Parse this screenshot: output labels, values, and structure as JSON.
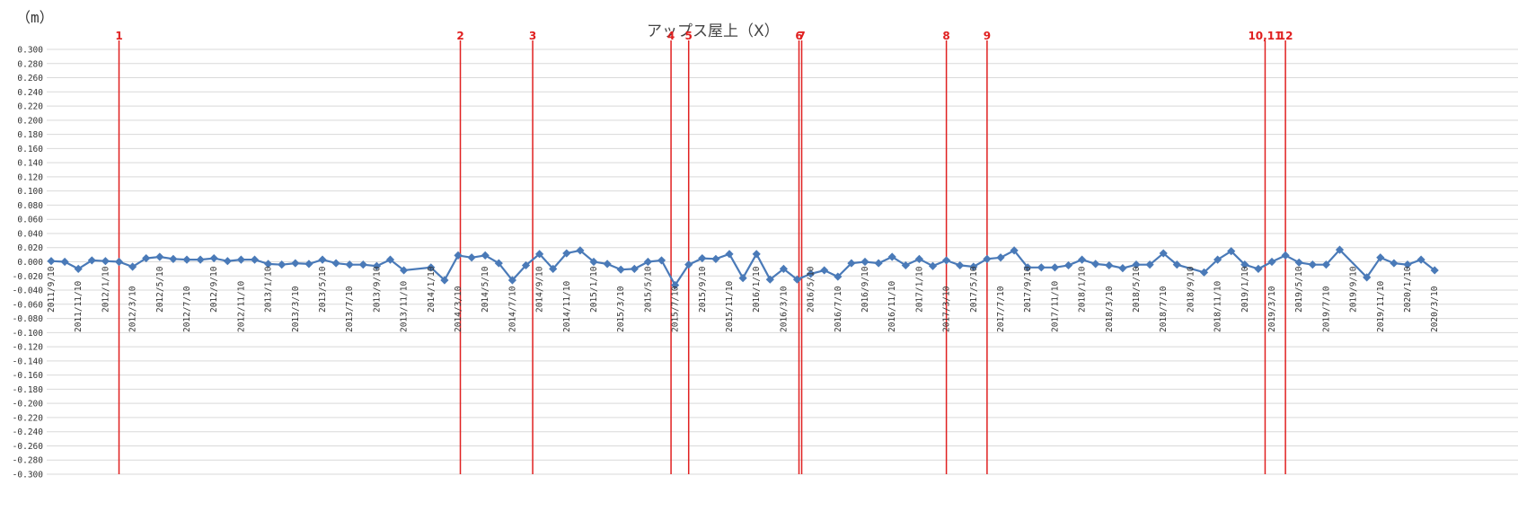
{
  "chart_data": {
    "type": "line",
    "title": "アップス屋上（X）",
    "unit_label": "（m）",
    "ylim": [
      -0.3,
      0.3
    ],
    "y_step": 0.02,
    "grid": true,
    "legend": "none",
    "x_tick_labels": [
      "2011/9/10",
      "2011/11/10",
      "2012/1/10",
      "2012/3/10",
      "2012/5/10",
      "2012/7/10",
      "2012/9/10",
      "2012/11/10",
      "2013/1/10",
      "2013/3/10",
      "2013/5/10",
      "2013/7/10",
      "2013/9/10",
      "2013/11/10",
      "2014/1/10",
      "2014/3/10",
      "2014/5/10",
      "2014/7/10",
      "2014/9/10",
      "2014/11/10",
      "2015/1/10",
      "2015/3/10",
      "2015/5/10",
      "2015/7/10",
      "2015/9/10",
      "2015/11/10",
      "2016/1/10",
      "2016/3/10",
      "2016/5/10",
      "2016/7/10",
      "2016/9/10",
      "2016/11/10",
      "2017/1/10",
      "2017/3/10",
      "2017/5/10",
      "2017/7/10",
      "2017/9/10",
      "2017/11/10",
      "2018/1/10",
      "2018/3/10",
      "2018/5/10",
      "2018/7/10",
      "2018/9/10",
      "2018/11/10",
      "2019/1/10",
      "2019/3/10",
      "2019/5/10",
      "2019/7/10",
      "2019/9/10",
      "2019/11/10",
      "2020/1/10",
      "2020/3/10"
    ],
    "series": [
      {
        "color": "#4a7ab8",
        "points": [
          [
            "2011/9/10",
            0.001
          ],
          [
            "2011/10/10",
            0.0
          ],
          [
            "2011/11/10",
            -0.01
          ],
          [
            "2011/12/10",
            0.002
          ],
          [
            "2012/1/10",
            0.001
          ],
          [
            "2012/2/10",
            0.0
          ],
          [
            "2012/3/10",
            -0.007
          ],
          [
            "2012/4/10",
            0.005
          ],
          [
            "2012/5/10",
            0.007
          ],
          [
            "2012/6/10",
            0.004
          ],
          [
            "2012/7/10",
            0.003
          ],
          [
            "2012/8/10",
            0.003
          ],
          [
            "2012/9/10",
            0.005
          ],
          [
            "2012/10/10",
            0.001
          ],
          [
            "2012/11/10",
            0.003
          ],
          [
            "2012/12/10",
            0.003
          ],
          [
            "2013/1/10",
            -0.003
          ],
          [
            "2013/2/10",
            -0.004
          ],
          [
            "2013/3/10",
            -0.002
          ],
          [
            "2013/4/10",
            -0.003
          ],
          [
            "2013/5/10",
            0.003
          ],
          [
            "2013/6/10",
            -0.002
          ],
          [
            "2013/7/10",
            -0.004
          ],
          [
            "2013/8/10",
            -0.004
          ],
          [
            "2013/9/10",
            -0.006
          ],
          [
            "2013/10/10",
            0.003
          ],
          [
            "2013/11/10",
            -0.012
          ],
          [
            "2014/1/10",
            -0.008
          ],
          [
            "2014/2/10",
            -0.026
          ],
          [
            "2014/3/10",
            0.009
          ],
          [
            "2014/4/10",
            0.006
          ],
          [
            "2014/5/10",
            0.009
          ],
          [
            "2014/6/10",
            -0.002
          ],
          [
            "2014/7/10",
            -0.026
          ],
          [
            "2014/8/10",
            -0.005
          ],
          [
            "2014/9/10",
            0.011
          ],
          [
            "2014/10/10",
            -0.01
          ],
          [
            "2014/11/10",
            0.012
          ],
          [
            "2014/12/10",
            0.016
          ],
          [
            "2015/1/10",
            0.0
          ],
          [
            "2015/2/10",
            -0.003
          ],
          [
            "2015/3/10",
            -0.011
          ],
          [
            "2015/4/10",
            -0.01
          ],
          [
            "2015/5/10",
            0.0
          ],
          [
            "2015/6/10",
            0.002
          ],
          [
            "2015/7/10",
            -0.033
          ],
          [
            "2015/8/10",
            -0.004
          ],
          [
            "2015/9/10",
            0.005
          ],
          [
            "2015/10/10",
            0.004
          ],
          [
            "2015/11/10",
            0.011
          ],
          [
            "2015/12/10",
            -0.023
          ],
          [
            "2016/1/10",
            0.011
          ],
          [
            "2016/2/10",
            -0.025
          ],
          [
            "2016/3/10",
            -0.01
          ],
          [
            "2016/4/10",
            -0.025
          ],
          [
            "2016/5/10",
            -0.017
          ],
          [
            "2016/6/10",
            -0.012
          ],
          [
            "2016/7/10",
            -0.021
          ],
          [
            "2016/8/10",
            -0.002
          ],
          [
            "2016/9/10",
            0.0
          ],
          [
            "2016/10/10",
            -0.002
          ],
          [
            "2016/11/10",
            0.007
          ],
          [
            "2016/12/10",
            -0.005
          ],
          [
            "2017/1/10",
            0.004
          ],
          [
            "2017/2/10",
            -0.006
          ],
          [
            "2017/3/10",
            0.002
          ],
          [
            "2017/4/10",
            -0.005
          ],
          [
            "2017/5/10",
            -0.007
          ],
          [
            "2017/6/10",
            0.004
          ],
          [
            "2017/7/10",
            0.006
          ],
          [
            "2017/8/10",
            0.016
          ],
          [
            "2017/9/10",
            -0.008
          ],
          [
            "2017/10/10",
            -0.008
          ],
          [
            "2017/11/10",
            -0.008
          ],
          [
            "2017/12/10",
            -0.005
          ],
          [
            "2018/1/10",
            0.003
          ],
          [
            "2018/2/10",
            -0.003
          ],
          [
            "2018/3/10",
            -0.005
          ],
          [
            "2018/4/10",
            -0.009
          ],
          [
            "2018/5/10",
            -0.004
          ],
          [
            "2018/6/10",
            -0.004
          ],
          [
            "2018/7/10",
            0.012
          ],
          [
            "2018/8/10",
            -0.004
          ],
          [
            "2018/10/10",
            -0.015
          ],
          [
            "2018/11/10",
            0.003
          ],
          [
            "2018/12/10",
            0.015
          ],
          [
            "2019/1/10",
            -0.004
          ],
          [
            "2019/2/10",
            -0.01
          ],
          [
            "2019/3/10",
            0.0
          ],
          [
            "2019/4/10",
            0.009
          ],
          [
            "2019/5/10",
            -0.001
          ],
          [
            "2019/6/10",
            -0.004
          ],
          [
            "2019/7/10",
            -0.004
          ],
          [
            "2019/8/10",
            0.017
          ],
          [
            "2019/10/10",
            -0.022
          ],
          [
            "2019/11/10",
            0.006
          ],
          [
            "2019/12/10",
            -0.002
          ],
          [
            "2020/1/10",
            -0.004
          ],
          [
            "2020/2/10",
            0.003
          ],
          [
            "2020/3/10",
            -0.012
          ]
        ]
      }
    ],
    "event_markers": [
      {
        "label": "1",
        "date": "2012/2/10"
      },
      {
        "label": "2",
        "date": "2014/3/15"
      },
      {
        "label": "3",
        "date": "2014/8/25"
      },
      {
        "label": "4",
        "date": "2015/7/1"
      },
      {
        "label": "5",
        "date": "2015/8/10"
      },
      {
        "label": "6",
        "date": "2016/4/14"
      },
      {
        "label": "7",
        "date": "2016/4/20"
      },
      {
        "label": "8",
        "date": "2017/3/10"
      },
      {
        "label": "9",
        "date": "2017/6/10"
      },
      {
        "label": "10,11",
        "date": "2019/2/25"
      },
      {
        "label": "12",
        "date": "2019/4/10"
      }
    ],
    "colors": {
      "line": "#4a7ab8",
      "marker_line": "#e02020",
      "marker_text": "#e02020",
      "grid": "#d9d9d9"
    }
  }
}
